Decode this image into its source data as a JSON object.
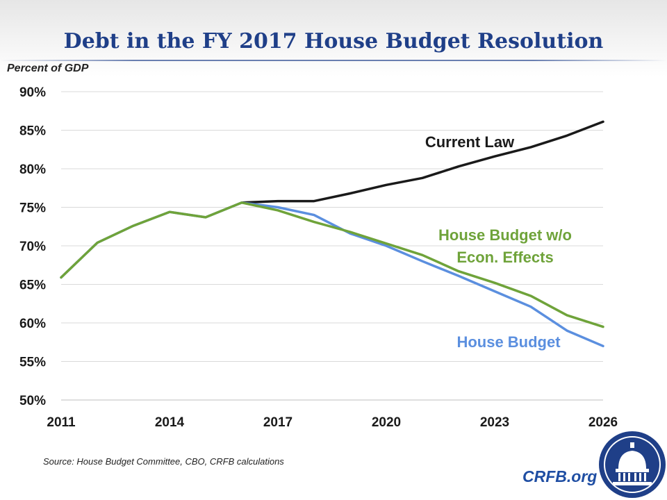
{
  "title": "Debt in the FY 2017 House Budget Resolution",
  "source": "Source: House Budget Committee, CBO, CRFB calculations",
  "brand": "CRFB.org",
  "seal_icon": "capitol-dome-seal-icon",
  "colors": {
    "title": "#1f3f88",
    "current_law": "#1a1a1a",
    "house_budget": "#5b8fdf",
    "house_budget_no_econ": "#6fa33a",
    "gridline": "#d9d9d9",
    "brand": "#1f4ea3"
  },
  "chart_data": {
    "type": "line",
    "title": "Debt in the FY 2017 House Budget Resolution",
    "xlabel": "",
    "ylabel": "Percent of GDP",
    "ylim": [
      50,
      90
    ],
    "xlim": [
      2011,
      2026
    ],
    "yticks": [
      50,
      55,
      60,
      65,
      70,
      75,
      80,
      85,
      90
    ],
    "ytick_labels": [
      "50%",
      "55%",
      "60%",
      "65%",
      "70%",
      "75%",
      "80%",
      "85%",
      "90%"
    ],
    "xticks": [
      2011,
      2014,
      2017,
      2020,
      2023,
      2026
    ],
    "xtick_labels": [
      "2011",
      "2014",
      "2017",
      "2020",
      "2023",
      "2026"
    ],
    "grid": true,
    "legend": "inline labels",
    "series": [
      {
        "key": "current_law",
        "name": "Current Law",
        "label_lines": [
          "Current Law"
        ],
        "x": [
          2016,
          2017,
          2018,
          2019,
          2020,
          2021,
          2022,
          2023,
          2024,
          2025,
          2026
        ],
        "values": [
          75.6,
          75.8,
          75.8,
          76.8,
          77.9,
          78.8,
          80.3,
          81.6,
          82.8,
          84.3,
          86.1
        ]
      },
      {
        "key": "house_budget",
        "name": "House Budget",
        "label_lines": [
          "House Budget"
        ],
        "x": [
          2011,
          2012,
          2013,
          2014,
          2015,
          2016,
          2017,
          2018,
          2019,
          2020,
          2021,
          2022,
          2023,
          2024,
          2025,
          2026
        ],
        "values": [
          65.9,
          70.4,
          72.6,
          74.4,
          73.7,
          75.6,
          75.0,
          74.0,
          71.6,
          70.0,
          68.0,
          66.1,
          64.1,
          62.1,
          59.0,
          57.0
        ]
      },
      {
        "key": "house_budget_no_econ",
        "name": "House Budget w/o Econ. Effects",
        "label_lines": [
          "House Budget w/o",
          "Econ. Effects"
        ],
        "x": [
          2011,
          2012,
          2013,
          2014,
          2015,
          2016,
          2017,
          2018,
          2019,
          2020,
          2021,
          2022,
          2023,
          2024,
          2025,
          2026
        ],
        "values": [
          65.9,
          70.4,
          72.6,
          74.4,
          73.7,
          75.6,
          74.6,
          73.1,
          71.8,
          70.3,
          68.8,
          66.7,
          65.2,
          63.5,
          61.0,
          59.5
        ]
      }
    ]
  }
}
